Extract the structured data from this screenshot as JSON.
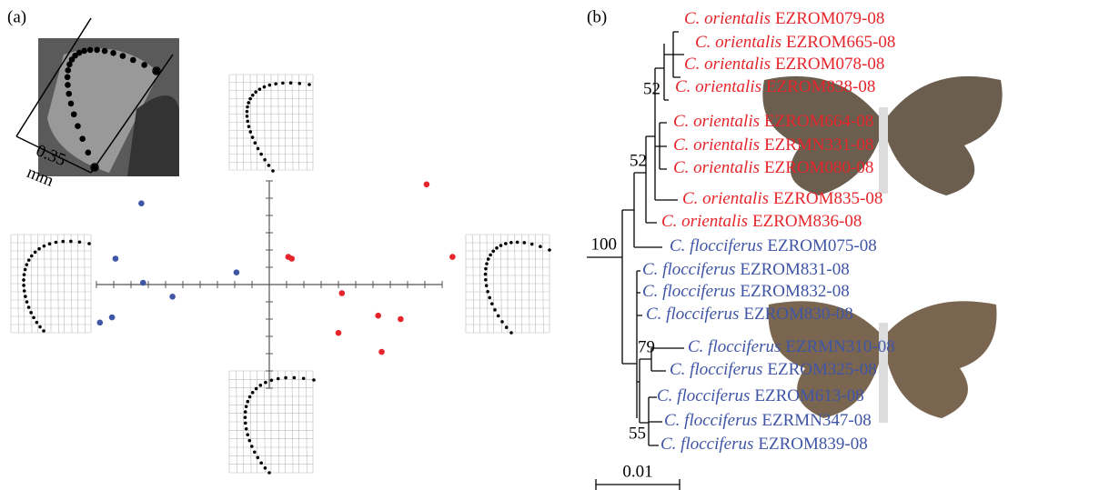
{
  "panel_a": {
    "label": "(a)",
    "scale_value": "0.35",
    "scale_unit": "mm"
  },
  "chart_data": {
    "type": "scatter",
    "xlim": [
      -11,
      11
    ],
    "ylim": [
      -6,
      6
    ],
    "xticks": [
      -10,
      -9,
      -8,
      -7,
      -6,
      -5,
      -4,
      -3,
      -2,
      -1,
      0,
      1,
      2,
      3,
      4,
      5,
      6,
      7,
      8,
      9,
      10
    ],
    "yticks": [
      -6,
      -5,
      -4,
      -3,
      -2,
      -1,
      0,
      1,
      2,
      3,
      4,
      5,
      6
    ],
    "series": [
      {
        "color": "#3f55a5",
        "x": [
          -7.4,
          -8.9,
          -7.3,
          -5.6,
          -1.9,
          -9.1,
          -9.8
        ],
        "y": [
          4.7,
          1.5,
          0.1,
          -0.7,
          0.7,
          -1.9,
          -2.2
        ]
      },
      {
        "color": "#e5252b",
        "x": [
          9.1,
          1.1,
          1.3,
          10.6,
          4.2,
          6.3,
          7.6,
          4.0,
          6.5
        ],
        "y": [
          5.8,
          1.6,
          1.5,
          1.6,
          -0.5,
          -1.8,
          -2.0,
          -2.8,
          -3.9
        ]
      }
    ]
  },
  "panel_b": {
    "label": "(b)",
    "scale_bar": "0.01",
    "bootstrap": [
      "52",
      "52",
      "100",
      "79",
      "55"
    ],
    "leaves": [
      {
        "genus": "C. orientalis",
        "id": "EZROM079-08",
        "color": "#e5252b"
      },
      {
        "genus": "C. orientalis",
        "id": "EZROM665-08",
        "color": "#e5252b"
      },
      {
        "genus": "C. orientalis",
        "id": "EZROM078-08",
        "color": "#e5252b"
      },
      {
        "genus": "C. orientalis",
        "id": "EZROM838-08",
        "color": "#e5252b"
      },
      {
        "genus": "C. orientalis",
        "id": "EZROM664-08",
        "color": "#e5252b"
      },
      {
        "genus": "C. orientalis",
        "id": "EZRMN331-08",
        "color": "#e5252b"
      },
      {
        "genus": "C. orientalis",
        "id": "EZROM080-08",
        "color": "#e5252b"
      },
      {
        "genus": "C. orientalis",
        "id": "EZROM835-08",
        "color": "#e5252b"
      },
      {
        "genus": "C. orientalis",
        "id": "EZROM836-08",
        "color": "#e5252b"
      },
      {
        "genus": "C. flocciferus",
        "id": "EZROM075-08",
        "color": "#3f55a5"
      },
      {
        "genus": "C. flocciferus",
        "id": "EZROM831-08",
        "color": "#3f55a5"
      },
      {
        "genus": "C. flocciferus",
        "id": "EZROM832-08",
        "color": "#3f55a5"
      },
      {
        "genus": "C. flocciferus",
        "id": "EZROM830-08",
        "color": "#3f55a5"
      },
      {
        "genus": "C. flocciferus",
        "id": "EZRMN310-08",
        "color": "#3f55a5"
      },
      {
        "genus": "C. flocciferus",
        "id": "EZROM325-08",
        "color": "#3f55a5"
      },
      {
        "genus": "C. flocciferus",
        "id": "EZROM613-08",
        "color": "#3f55a5"
      },
      {
        "genus": "C. flocciferus",
        "id": "EZRMN347-08",
        "color": "#3f55a5"
      },
      {
        "genus": "C. flocciferus",
        "id": "EZROM839-08",
        "color": "#3f55a5"
      }
    ]
  }
}
